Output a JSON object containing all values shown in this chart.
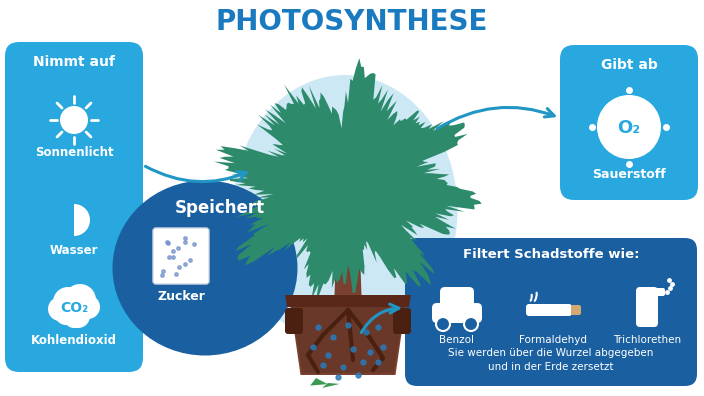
{
  "title": "PHOTOSYNTHESE",
  "title_color": "#1a7abf",
  "title_fontsize": 20,
  "bg_color": "#ffffff",
  "blue_panel_color": "#29a8e0",
  "dark_blue_panel_color": "#1a5fa0",
  "left_panel": {
    "header": "Nimmt auf",
    "items": [
      "Sonnenlicht",
      "Wasser",
      "Kohlendioxid"
    ],
    "co2_text": "CO₂"
  },
  "top_right_panel": {
    "header": "Gibt ab",
    "item": "Sauerstoff",
    "o2_text": "O₂"
  },
  "bottom_left_panel": {
    "header": "Speichert",
    "item": "Zucker"
  },
  "bottom_right_panel": {
    "header": "Filtert Schadstoffe wie:",
    "items": [
      "Benzol",
      "Formaldehyd",
      "Trichlorethen"
    ],
    "footer": "Sie werden über die Wurzel abgegeben\nund in der Erde zersetzt"
  },
  "tree_color": "#2d8a6a",
  "trunk_color": "#7a4030",
  "pot_color": "#7a4030",
  "soil_color": "#5a3020",
  "light_blue_ellipse": "#cce8f4",
  "dark_blue_circle": "#1a5fa0",
  "arrow_color": "#2196c4",
  "leaf_color": "#3a9a50"
}
